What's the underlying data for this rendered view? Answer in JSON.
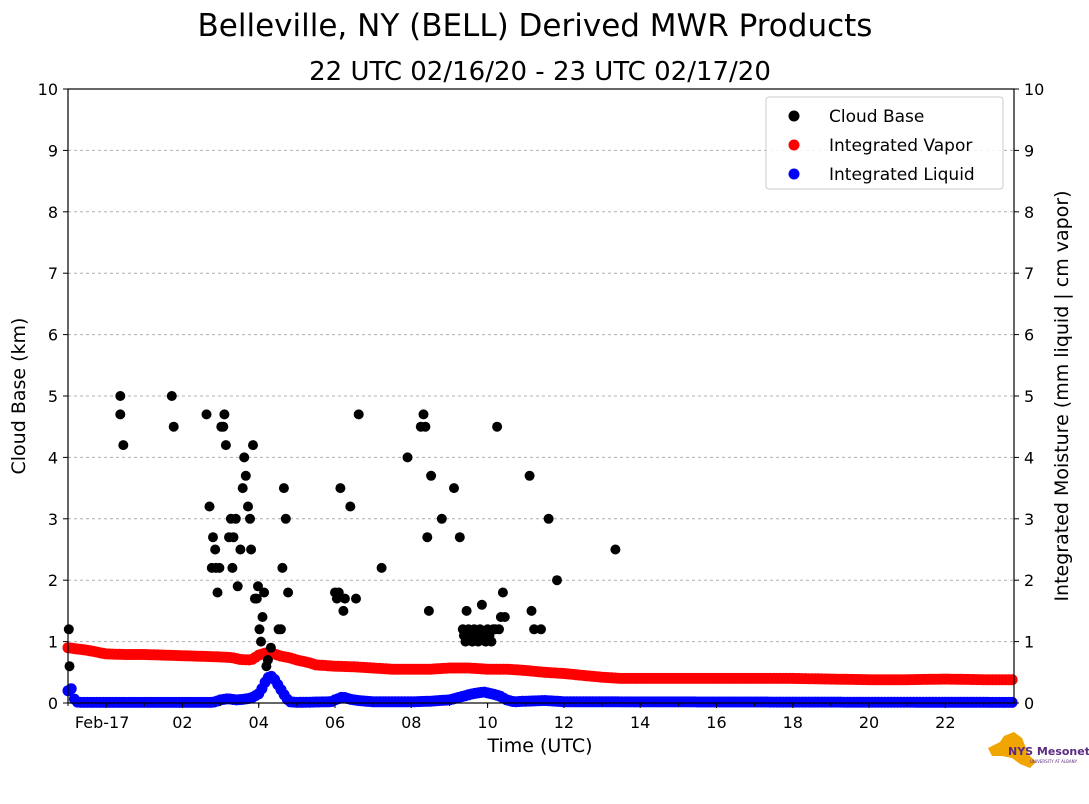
{
  "chart_data": {
    "type": "scatter",
    "title": "Belleville, NY (BELL) Derived MWR Products",
    "subtitle": "22 UTC 02/16/20 - 23 UTC 02/17/20",
    "xlabel": "Time (UTC)",
    "ylabel_left": "Cloud Base (km)",
    "ylabel_right": "Integrated Moisture (mm liquid | cm vapor)",
    "xlim_hours": [
      0,
      24.8
    ],
    "ylim": [
      0,
      10
    ],
    "y_ticks": [
      "0",
      "1",
      "2",
      "3",
      "4",
      "5",
      "6",
      "7",
      "8",
      "9",
      "10"
    ],
    "x_ticks": [
      {
        "label": "Feb-17",
        "hour": 1
      },
      {
        "label": "02",
        "hour": 3
      },
      {
        "label": "04",
        "hour": 5
      },
      {
        "label": "06",
        "hour": 7
      },
      {
        "label": "08",
        "hour": 9
      },
      {
        "label": "10",
        "hour": 11
      },
      {
        "label": "12",
        "hour": 13
      },
      {
        "label": "14",
        "hour": 15
      },
      {
        "label": "16",
        "hour": 17
      },
      {
        "label": "18",
        "hour": 19
      },
      {
        "label": "20",
        "hour": 21
      },
      {
        "label": "22",
        "hour": 23
      }
    ],
    "grid": "horizontal dashed",
    "legend_position": "top-right",
    "series": [
      {
        "name": "Cloud Base",
        "color": "#000000",
        "points": [
          [
            0.02,
            1.2
          ],
          [
            0.04,
            0.6
          ],
          [
            1.37,
            5.0
          ],
          [
            1.37,
            4.7
          ],
          [
            1.45,
            4.2
          ],
          [
            2.72,
            5.0
          ],
          [
            2.77,
            4.5
          ],
          [
            3.63,
            4.7
          ],
          [
            3.71,
            3.2
          ],
          [
            3.77,
            2.2
          ],
          [
            3.8,
            2.7
          ],
          [
            3.86,
            2.5
          ],
          [
            3.88,
            2.2
          ],
          [
            3.92,
            1.8
          ],
          [
            3.97,
            2.2
          ],
          [
            4.02,
            4.5
          ],
          [
            4.07,
            4.5
          ],
          [
            4.1,
            4.7
          ],
          [
            4.14,
            4.2
          ],
          [
            4.22,
            2.7
          ],
          [
            4.27,
            3.0
          ],
          [
            4.31,
            2.2
          ],
          [
            4.34,
            2.7
          ],
          [
            4.4,
            3.0
          ],
          [
            4.45,
            1.9
          ],
          [
            4.52,
            2.5
          ],
          [
            4.58,
            3.5
          ],
          [
            4.62,
            4.0
          ],
          [
            4.66,
            3.7
          ],
          [
            4.72,
            3.2
          ],
          [
            4.77,
            3.0
          ],
          [
            4.8,
            2.5
          ],
          [
            4.85,
            4.2
          ],
          [
            4.9,
            1.7
          ],
          [
            4.95,
            1.7
          ],
          [
            4.98,
            1.9
          ],
          [
            5.02,
            1.2
          ],
          [
            5.06,
            1.0
          ],
          [
            5.1,
            1.4
          ],
          [
            5.14,
            1.8
          ],
          [
            5.2,
            0.6
          ],
          [
            5.24,
            0.7
          ],
          [
            5.32,
            0.9
          ],
          [
            5.52,
            1.2
          ],
          [
            5.58,
            1.2
          ],
          [
            5.62,
            2.2
          ],
          [
            5.66,
            3.5
          ],
          [
            5.71,
            3.0
          ],
          [
            5.77,
            1.8
          ],
          [
            7.0,
            1.8
          ],
          [
            7.05,
            1.7
          ],
          [
            7.1,
            1.8
          ],
          [
            7.14,
            3.5
          ],
          [
            7.22,
            1.5
          ],
          [
            7.26,
            1.7
          ],
          [
            7.4,
            3.2
          ],
          [
            7.55,
            1.7
          ],
          [
            7.62,
            4.7
          ],
          [
            8.22,
            2.2
          ],
          [
            8.9,
            4.0
          ],
          [
            9.25,
            4.5
          ],
          [
            9.32,
            4.7
          ],
          [
            9.37,
            4.5
          ],
          [
            9.42,
            2.7
          ],
          [
            9.46,
            1.5
          ],
          [
            9.52,
            3.7
          ],
          [
            9.8,
            3.0
          ],
          [
            10.12,
            3.5
          ],
          [
            10.27,
            2.7
          ],
          [
            10.35,
            1.2
          ],
          [
            10.38,
            1.1
          ],
          [
            10.42,
            1.0
          ],
          [
            10.45,
            1.5
          ],
          [
            10.5,
            1.2
          ],
          [
            10.55,
            1.1
          ],
          [
            10.6,
            1.0
          ],
          [
            10.65,
            1.2
          ],
          [
            10.7,
            1.1
          ],
          [
            10.75,
            1.0
          ],
          [
            10.8,
            1.2
          ],
          [
            10.85,
            1.6
          ],
          [
            10.9,
            1.1
          ],
          [
            10.95,
            1.0
          ],
          [
            11.0,
            1.2
          ],
          [
            11.05,
            1.1
          ],
          [
            11.1,
            1.0
          ],
          [
            11.15,
            1.2
          ],
          [
            11.2,
            1.2
          ],
          [
            11.25,
            4.5
          ],
          [
            11.3,
            1.2
          ],
          [
            11.35,
            1.4
          ],
          [
            11.4,
            1.8
          ],
          [
            11.45,
            1.4
          ],
          [
            12.1,
            3.7
          ],
          [
            12.15,
            1.5
          ],
          [
            12.22,
            1.2
          ],
          [
            12.4,
            1.2
          ],
          [
            12.6,
            3.0
          ],
          [
            12.82,
            2.0
          ],
          [
            14.35,
            2.5
          ]
        ]
      },
      {
        "name": "Integrated Vapor",
        "color": "#ff0000",
        "profile": [
          [
            0,
            0.9
          ],
          [
            0.5,
            0.86
          ],
          [
            1.0,
            0.8
          ],
          [
            1.5,
            0.79
          ],
          [
            2.0,
            0.79
          ],
          [
            2.5,
            0.78
          ],
          [
            3.0,
            0.77
          ],
          [
            3.5,
            0.76
          ],
          [
            4.0,
            0.75
          ],
          [
            4.3,
            0.74
          ],
          [
            4.5,
            0.71
          ],
          [
            4.8,
            0.7
          ],
          [
            5.0,
            0.78
          ],
          [
            5.2,
            0.82
          ],
          [
            5.4,
            0.8
          ],
          [
            5.6,
            0.76
          ],
          [
            5.8,
            0.74
          ],
          [
            6.0,
            0.7
          ],
          [
            6.3,
            0.66
          ],
          [
            6.5,
            0.62
          ],
          [
            7.0,
            0.6
          ],
          [
            7.5,
            0.59
          ],
          [
            8.0,
            0.57
          ],
          [
            8.5,
            0.55
          ],
          [
            9.0,
            0.55
          ],
          [
            9.5,
            0.55
          ],
          [
            10.0,
            0.57
          ],
          [
            10.5,
            0.57
          ],
          [
            11.0,
            0.55
          ],
          [
            11.5,
            0.55
          ],
          [
            12.0,
            0.53
          ],
          [
            12.5,
            0.5
          ],
          [
            13.0,
            0.48
          ],
          [
            13.5,
            0.45
          ],
          [
            14.0,
            0.42
          ],
          [
            14.5,
            0.4
          ],
          [
            15.0,
            0.4
          ],
          [
            16.0,
            0.4
          ],
          [
            17.0,
            0.4
          ],
          [
            18.0,
            0.4
          ],
          [
            19.0,
            0.4
          ],
          [
            20.0,
            0.39
          ],
          [
            21.0,
            0.38
          ],
          [
            22.0,
            0.38
          ],
          [
            23.0,
            0.39
          ],
          [
            24.0,
            0.38
          ],
          [
            24.8,
            0.38
          ]
        ]
      },
      {
        "name": "Integrated Liquid",
        "color": "#0000ff",
        "profile": [
          [
            0,
            0.2
          ],
          [
            0.05,
            0.4
          ],
          [
            0.1,
            0.15
          ],
          [
            0.2,
            0.02
          ],
          [
            0.3,
            0.01
          ],
          [
            3.8,
            0.01
          ],
          [
            4.0,
            0.05
          ],
          [
            4.2,
            0.07
          ],
          [
            4.4,
            0.05
          ],
          [
            4.6,
            0.06
          ],
          [
            4.8,
            0.08
          ],
          [
            5.0,
            0.15
          ],
          [
            5.1,
            0.25
          ],
          [
            5.2,
            0.38
          ],
          [
            5.3,
            0.45
          ],
          [
            5.4,
            0.4
          ],
          [
            5.5,
            0.3
          ],
          [
            5.6,
            0.2
          ],
          [
            5.7,
            0.1
          ],
          [
            5.8,
            0.02
          ],
          [
            6.0,
            0.01
          ],
          [
            6.9,
            0.02
          ],
          [
            7.0,
            0.05
          ],
          [
            7.2,
            0.1
          ],
          [
            7.4,
            0.06
          ],
          [
            7.6,
            0.04
          ],
          [
            8.0,
            0.02
          ],
          [
            9.0,
            0.02
          ],
          [
            9.5,
            0.03
          ],
          [
            10.0,
            0.05
          ],
          [
            10.3,
            0.1
          ],
          [
            10.6,
            0.15
          ],
          [
            10.9,
            0.18
          ],
          [
            11.1,
            0.15
          ],
          [
            11.3,
            0.12
          ],
          [
            11.5,
            0.05
          ],
          [
            11.7,
            0.02
          ],
          [
            12.0,
            0.03
          ],
          [
            12.5,
            0.04
          ],
          [
            12.8,
            0.03
          ],
          [
            13.0,
            0.02
          ],
          [
            24.8,
            0.01
          ]
        ]
      }
    ]
  },
  "logo": {
    "text": "NYS Mesonet",
    "subtext": "UNIVERSITY AT ALBANY"
  }
}
